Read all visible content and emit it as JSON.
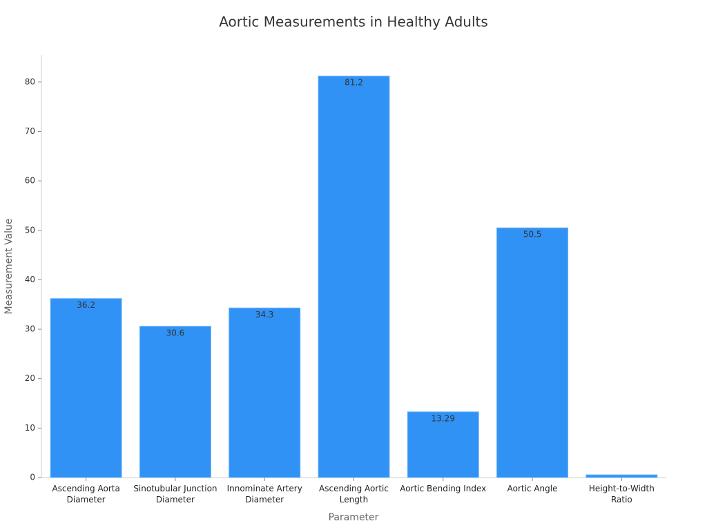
{
  "chart_data": {
    "type": "bar",
    "title": "Aortic Measurements in Healthy Adults",
    "x_label": "Parameter",
    "y_label": "Measurement Value",
    "categories": [
      "Ascending Aorta Diameter",
      "Sinotubular Junction Diameter",
      "Innominate Artery Diameter",
      "Ascending Aortic Length",
      "Aortic Bending Index",
      "Aortic Angle",
      "Height-to-Width Ratio"
    ],
    "values": [
      36.2,
      30.6,
      34.3,
      81.2,
      13.29,
      50.5,
      0.55
    ],
    "color": "#3092f5",
    "ylim": [
      0,
      85
    ],
    "yticks": [
      0,
      10,
      20,
      30,
      40,
      50,
      60,
      70,
      80
    ],
    "grid": false
  }
}
